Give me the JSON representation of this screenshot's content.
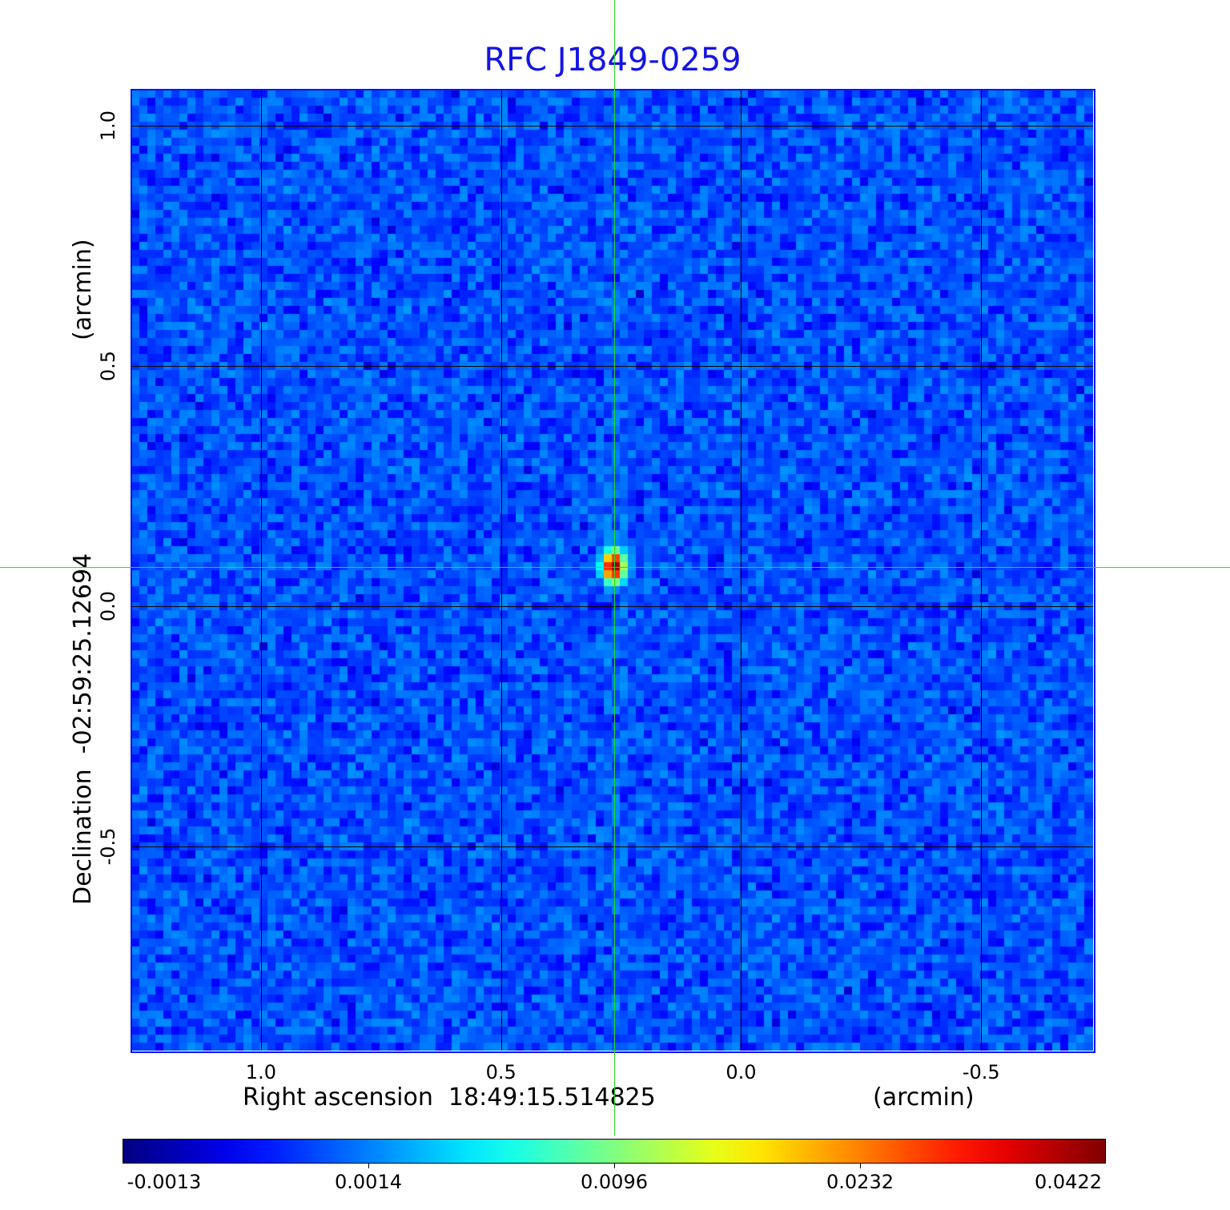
{
  "chart_data": {
    "type": "heatmap",
    "title": "RFC J1849-0259",
    "xlabel": "Right ascension  18:49:15.514825",
    "xunit": "(arcmin)",
    "ylabel": "Declination  -02:59:25.12694",
    "yunit": "(arcmin)",
    "xlim": [
      1.27,
      -0.733
    ],
    "ylim": [
      -0.925,
      1.075
    ],
    "x_ticks": [
      1.0,
      0.5,
      0.0,
      -0.5
    ],
    "x_tick_labels": [
      "1.0",
      "0.5",
      "0.0",
      "-0.5"
    ],
    "y_ticks": [
      1.0,
      0.5,
      0.0,
      -0.5
    ],
    "y_tick_labels": [
      "1.0",
      "0.5",
      "0.0",
      "-0.5"
    ],
    "grid": true,
    "colormap": "jet",
    "colorbar": {
      "placement": "bottom",
      "tick_labels": [
        "-0.0013",
        "0.0014",
        "0.0096",
        "0.0232",
        "0.0422"
      ],
      "tick_values": [
        -0.0013,
        0.0014,
        0.0096,
        0.0232,
        0.0422
      ]
    },
    "source": {
      "x": 0.265,
      "y": 0.082,
      "peak": 0.0422
    },
    "crosshair": {
      "x": 0.265,
      "y": 0.082,
      "color": "#22dd22"
    },
    "background_level": 0.0009,
    "title_color": "#1414e6",
    "frame_color": "#0a14f0"
  }
}
